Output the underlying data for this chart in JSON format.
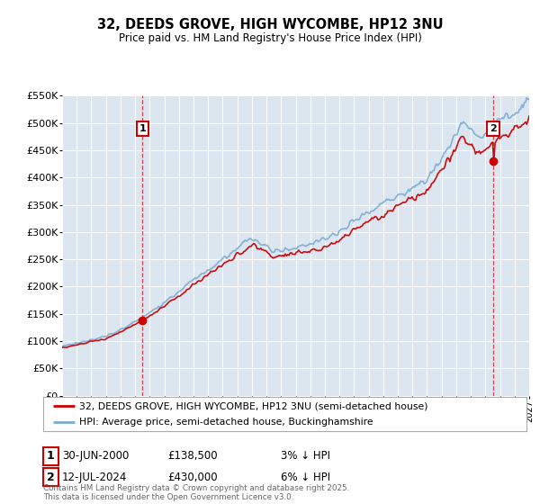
{
  "title": "32, DEEDS GROVE, HIGH WYCOMBE, HP12 3NU",
  "subtitle": "Price paid vs. HM Land Registry's House Price Index (HPI)",
  "ylabel_ticks": [
    "£0",
    "£50K",
    "£100K",
    "£150K",
    "£200K",
    "£250K",
    "£300K",
    "£350K",
    "£400K",
    "£450K",
    "£500K",
    "£550K"
  ],
  "ytick_values": [
    0,
    50000,
    100000,
    150000,
    200000,
    250000,
    300000,
    350000,
    400000,
    450000,
    500000,
    550000
  ],
  "x_start_year": 1995,
  "x_end_year": 2027,
  "sale1_year": 2000.5,
  "sale1_price": 138500,
  "sale2_year": 2024.54,
  "sale2_price": 430000,
  "legend_label_red": "32, DEEDS GROVE, HIGH WYCOMBE, HP12 3NU (semi-detached house)",
  "legend_label_blue": "HPI: Average price, semi-detached house, Buckinghamshire",
  "annotation1": "1",
  "annotation2": "2",
  "ann1_date": "30-JUN-2000",
  "ann1_price": "£138,500",
  "ann1_hpi": "3% ↓ HPI",
  "ann2_date": "12-JUL-2024",
  "ann2_price": "£430,000",
  "ann2_hpi": "6% ↓ HPI",
  "copyright_text": "Contains HM Land Registry data © Crown copyright and database right 2025.\nThis data is licensed under the Open Government Licence v3.0.",
  "line_color_red": "#cc0000",
  "line_color_blue": "#7aaad0",
  "bg_color": "#dce6f0",
  "grid_color": "#ffffff",
  "ann_vline_color": "#cc0000"
}
